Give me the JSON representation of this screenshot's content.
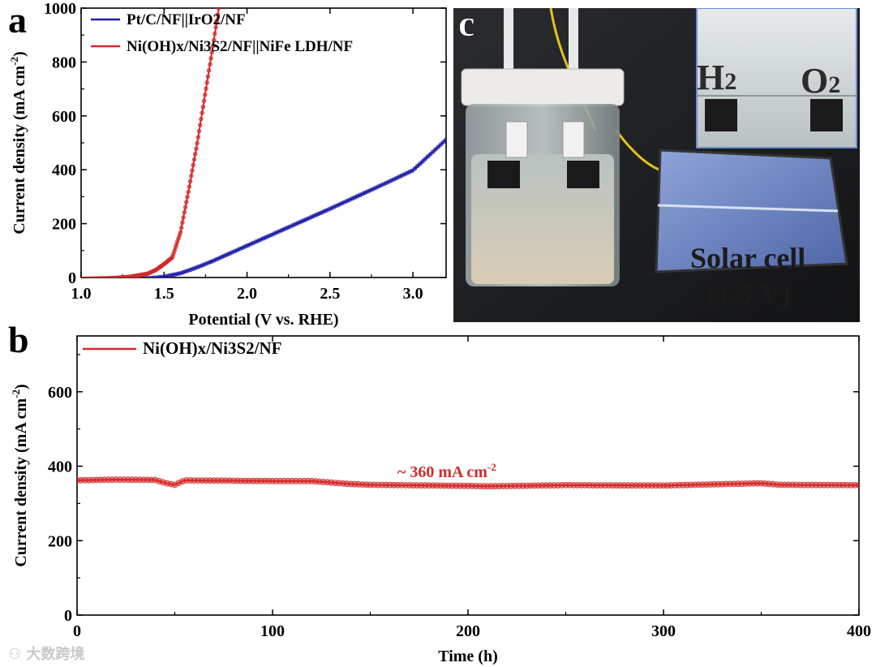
{
  "chart_data": [
    {
      "id": "a",
      "panel_label": "a",
      "type": "line",
      "xlabel": "Potential (V vs. RHE)",
      "ylabel_main": "Current density (mA cm",
      "ylabel_sup": "-2",
      "ylabel_close": ")",
      "xlim": [
        1.0,
        3.2
      ],
      "ylim": [
        0,
        1000
      ],
      "xticks": [
        "1.0",
        "1.5",
        "2.0",
        "2.5",
        "3.0"
      ],
      "xtick_values": [
        1.0,
        1.5,
        2.0,
        2.5,
        3.0
      ],
      "yticks": [
        "0",
        "200",
        "400",
        "600",
        "800",
        "1000"
      ],
      "ytick_values": [
        0,
        200,
        400,
        600,
        800,
        1000
      ],
      "legend_position": "top-left",
      "series": [
        {
          "name": "Pt/C/NF||IrO2/NF",
          "color": "#1a1aa8",
          "x": [
            1.0,
            1.2,
            1.4,
            1.5,
            1.6,
            1.7,
            1.8,
            2.0,
            2.2,
            2.5,
            2.8,
            3.0,
            3.2
          ],
          "y": [
            -8,
            -6,
            -3,
            3,
            16,
            38,
            63,
            118,
            173,
            255,
            340,
            398,
            512
          ]
        },
        {
          "name": "Ni(OH)x/Ni3S2/NF||NiFe LDH/NF",
          "color": "#d42a2a",
          "x": [
            1.0,
            1.2,
            1.3,
            1.4,
            1.45,
            1.5,
            1.55,
            1.6,
            1.65,
            1.7,
            1.75,
            1.8,
            1.83
          ],
          "y": [
            -5,
            -2,
            3,
            14,
            28,
            50,
            75,
            170,
            330,
            500,
            690,
            880,
            1000
          ]
        }
      ]
    },
    {
      "id": "b",
      "panel_label": "b",
      "type": "line",
      "xlabel": "Time (h)",
      "ylabel_main": "Current density (mA cm",
      "ylabel_sup": "-2",
      "ylabel_close": ")",
      "xlim": [
        0,
        400
      ],
      "ylim": [
        0,
        750
      ],
      "xticks": [
        "0",
        "100",
        "200",
        "300",
        "400"
      ],
      "xtick_values": [
        0,
        100,
        200,
        300,
        400
      ],
      "yticks": [
        "0",
        "200",
        "400",
        "600"
      ],
      "ytick_values": [
        0,
        200,
        400,
        600
      ],
      "legend_position": "top-left",
      "annotation": "~ 360 mA cm",
      "annotation_sup": "-2",
      "series": [
        {
          "name": "Ni(OH)x/Ni3S2/NF",
          "color": "#d42a2a",
          "x": [
            0,
            20,
            40,
            45,
            50,
            55,
            100,
            120,
            140,
            150,
            200,
            210,
            250,
            300,
            340,
            350,
            360,
            400
          ],
          "y": [
            362,
            364,
            363,
            355,
            350,
            362,
            360,
            360,
            352,
            350,
            347,
            346,
            349,
            348,
            353,
            354,
            350,
            349
          ]
        }
      ]
    }
  ],
  "photo": {
    "panel_label": "c",
    "inset_h2": "H",
    "inset_h2_sub": "2",
    "inset_o2": "O",
    "inset_o2_sub": "2",
    "solar_label": "Solar cell",
    "voltage_label": "(1.5 V)"
  },
  "watermark": "大数跨境"
}
